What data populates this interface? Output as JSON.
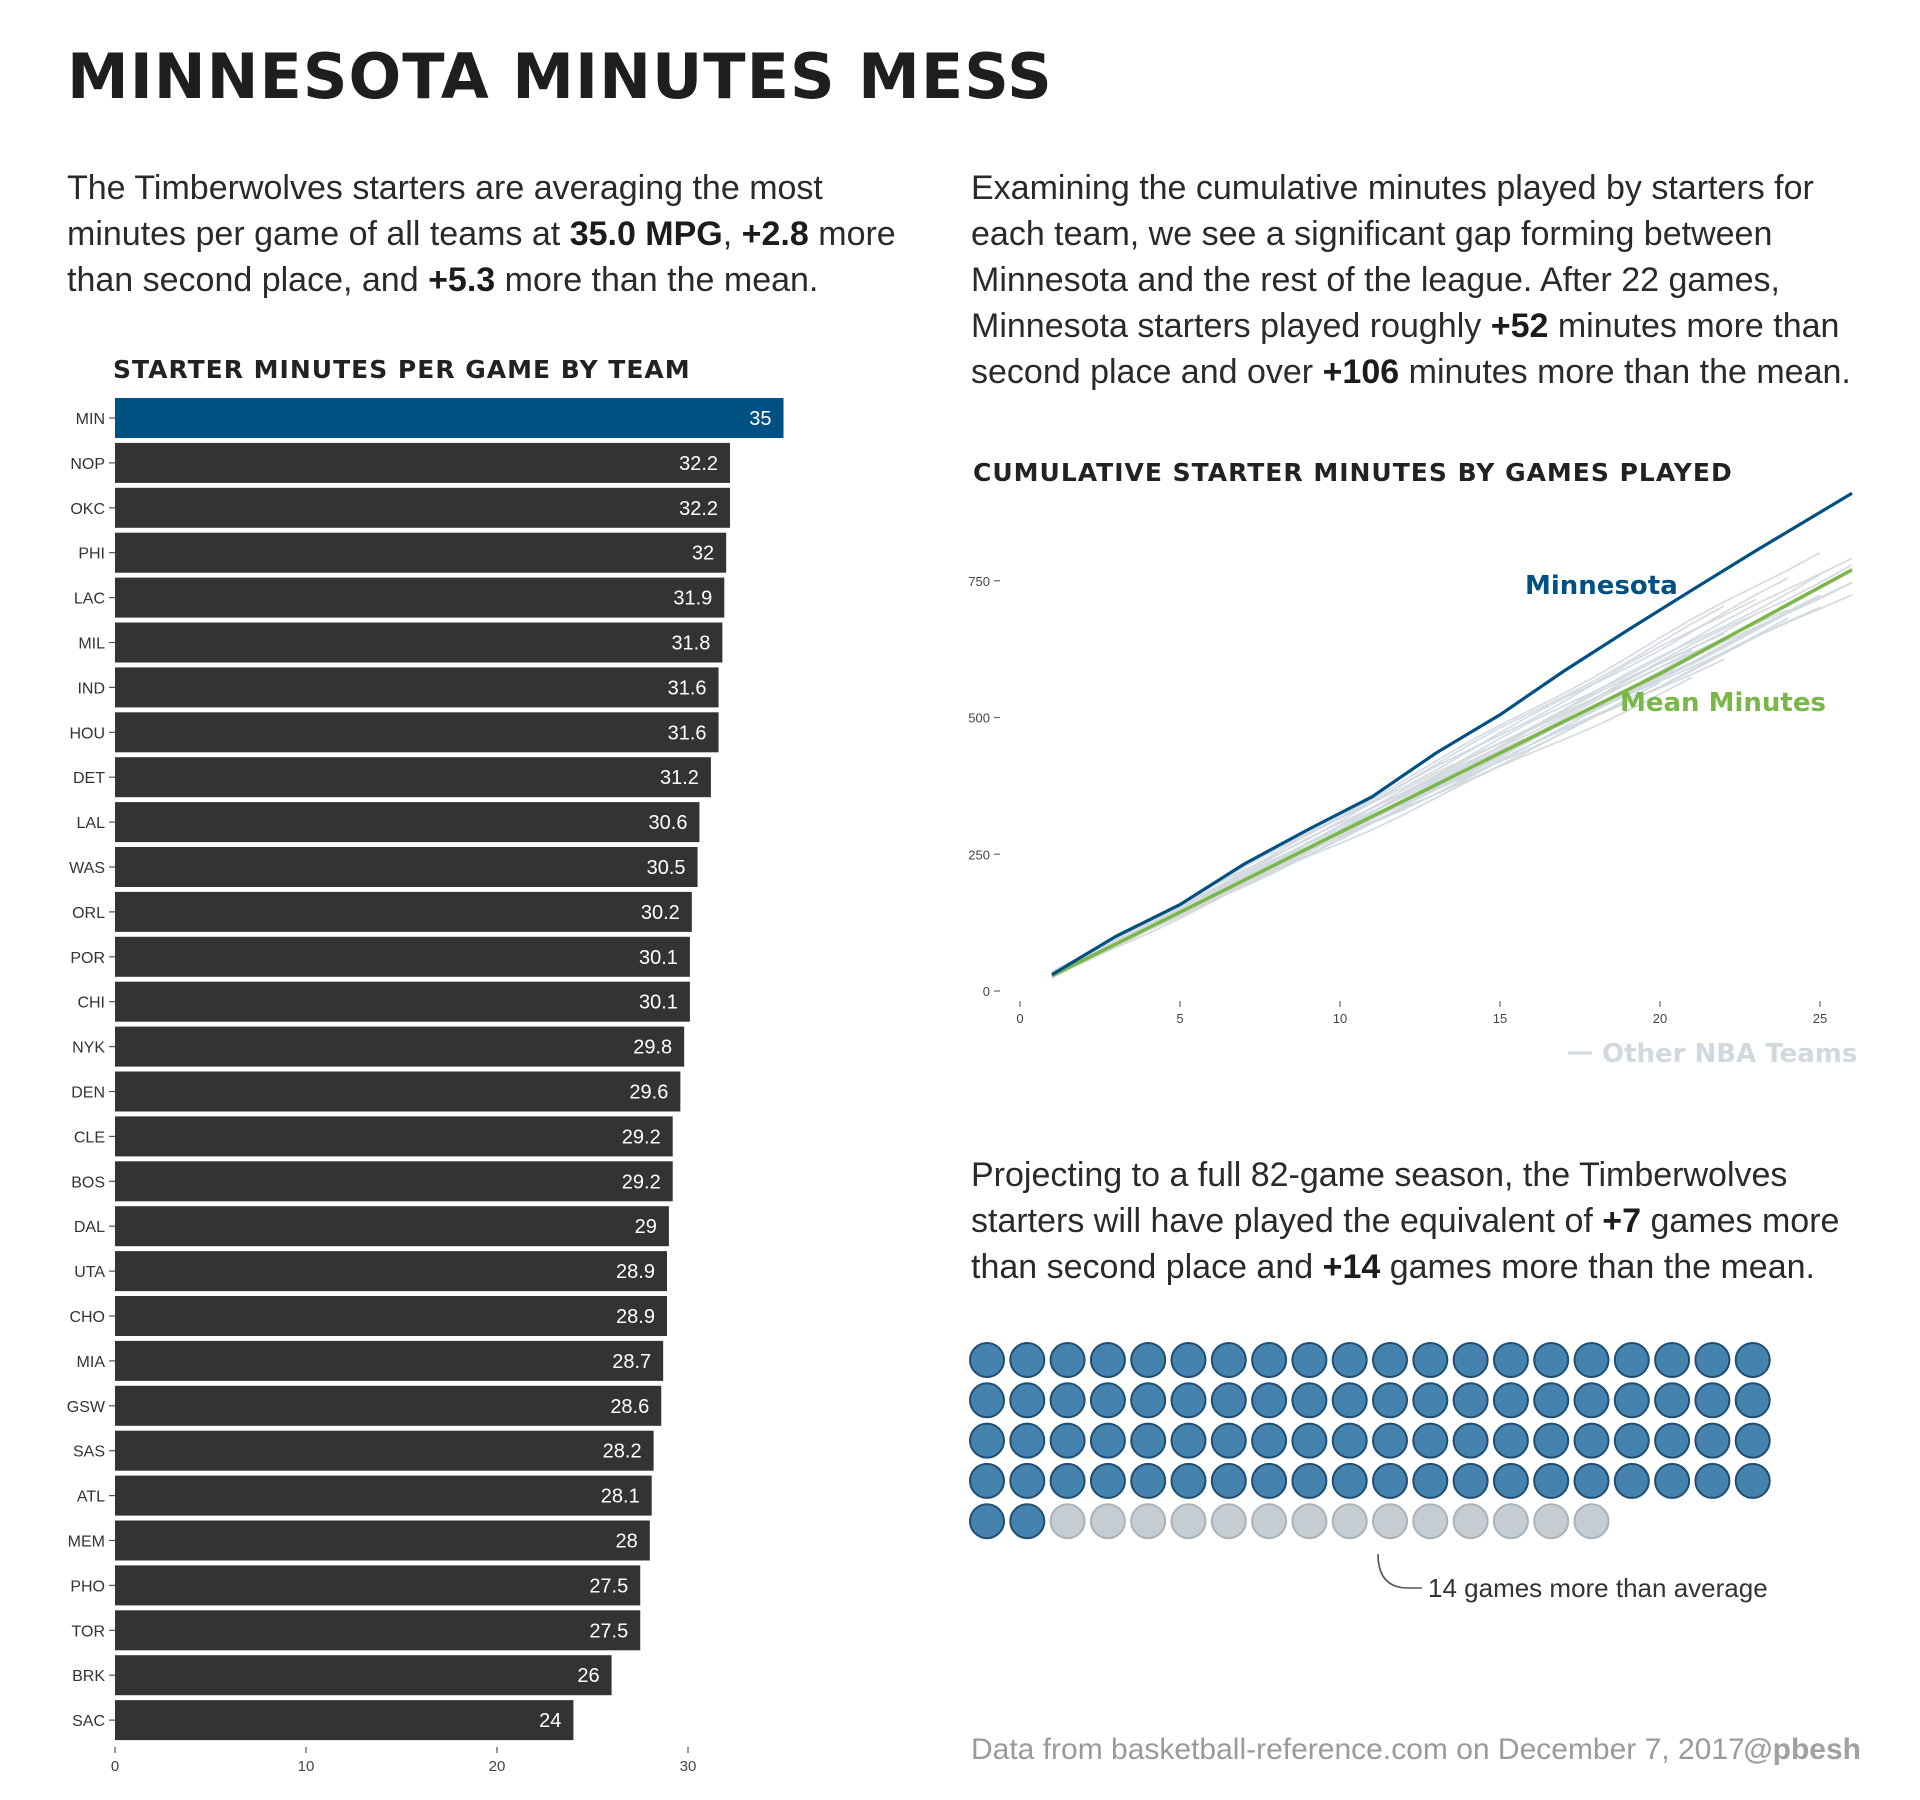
{
  "title": "MINNESOTA MINUTES MESS",
  "intro": {
    "t1": "The Timberwolves starters are averaging the most minutes per game of all teams at ",
    "b1": "35.0 MPG",
    "t2": ", ",
    "b2": "+2.8",
    "t3": " more than second place, and ",
    "b3": "+5.3",
    "t4": " more than the mean."
  },
  "cumulative_text": {
    "t1": "Examining the cumulative minutes played by starters for each team, we see a significant gap forming between Minnesota and the rest of the league. After 22 games, Minnesota starters played roughly ",
    "b1": "+52",
    "t2": " minutes more than second place and over ",
    "b2": "+106",
    "t3": " minutes more than the mean."
  },
  "projection_text": {
    "t1": "Projecting to a full 82-game season, the Timberwolves starters will have played the equivalent of ",
    "b1": "+7",
    "t2": " games more than second place and ",
    "b2": "+14",
    "t3": " games more than the mean."
  },
  "footer": {
    "source": "Data from basketball-reference.com on December 7, 2017",
    "handle": "@pbesh"
  },
  "colors": {
    "highlight": "#005083",
    "bar": "#333333",
    "mean": "#7ab648",
    "other": "#d1d8de",
    "waffle_filled": "#4582ad",
    "waffle_filled_stroke": "#1f4e72",
    "waffle_empty": "#c5cdd3",
    "waffle_empty_stroke": "#a9b2b9"
  },
  "chart_data": [
    {
      "type": "bar",
      "orientation": "horizontal",
      "title": "STARTER MINUTES PER GAME BY TEAM",
      "categories": [
        "MIN",
        "NOP",
        "OKC",
        "PHI",
        "LAC",
        "MIL",
        "IND",
        "HOU",
        "DET",
        "LAL",
        "WAS",
        "ORL",
        "POR",
        "CHI",
        "NYK",
        "DEN",
        "CLE",
        "BOS",
        "DAL",
        "UTA",
        "CHO",
        "MIA",
        "GSW",
        "SAS",
        "ATL",
        "MEM",
        "PHO",
        "TOR",
        "BRK",
        "SAC"
      ],
      "values": [
        35,
        32.2,
        32.2,
        32,
        31.9,
        31.8,
        31.6,
        31.6,
        31.2,
        30.6,
        30.5,
        30.2,
        30.1,
        30.1,
        29.8,
        29.6,
        29.2,
        29.2,
        29,
        28.9,
        28.9,
        28.7,
        28.6,
        28.2,
        28.1,
        28,
        27.5,
        27.5,
        26,
        24
      ],
      "value_labels": [
        "35",
        "32.2",
        "32.2",
        "32",
        "31.9",
        "31.8",
        "31.6",
        "31.6",
        "31.2",
        "30.6",
        "30.5",
        "30.2",
        "30.1",
        "30.1",
        "29.8",
        "29.6",
        "29.2",
        "29.2",
        "29",
        "28.9",
        "28.9",
        "28.7",
        "28.6",
        "28.2",
        "28.1",
        "28",
        "27.5",
        "27.5",
        "26",
        "24"
      ],
      "highlight": "MIN",
      "xlim": [
        0,
        35
      ],
      "xticks": [
        "0",
        "10",
        "20",
        "30"
      ]
    },
    {
      "type": "line",
      "title": "CUMULATIVE STARTER MINUTES BY GAMES PLAYED",
      "xlim": [
        0,
        26
      ],
      "ylim": [
        0,
        900
      ],
      "xticks": [
        "0",
        "5",
        "10",
        "15",
        "20",
        "25"
      ],
      "yticks": [
        "0",
        "250",
        "500",
        "750"
      ],
      "series": [
        {
          "name": "Minnesota",
          "x": [
            1,
            3,
            5,
            7,
            9,
            11,
            13,
            15,
            17,
            19,
            21,
            23,
            25,
            26
          ],
          "y": [
            30,
            100,
            158,
            232,
            295,
            355,
            435,
            505,
            585,
            660,
            733,
            805,
            875,
            910
          ]
        },
        {
          "name": "Mean Minutes",
          "x": [
            1,
            5,
            10,
            15,
            20,
            26
          ],
          "y": [
            28,
            144,
            290,
            435,
            580,
            770
          ]
        }
      ],
      "other_teams": {
        "name": "Other NBA Teams",
        "lines": [
          {
            "end_x": 26,
            "end_y": 795
          },
          {
            "end_x": 26,
            "end_y": 780
          },
          {
            "end_x": 26,
            "end_y": 765
          },
          {
            "end_x": 26,
            "end_y": 745
          },
          {
            "end_x": 26,
            "end_y": 728
          },
          {
            "end_x": 25,
            "end_y": 805
          },
          {
            "end_x": 25,
            "end_y": 760
          },
          {
            "end_x": 25,
            "end_y": 720
          },
          {
            "end_x": 24,
            "end_y": 752
          },
          {
            "end_x": 24,
            "end_y": 700
          },
          {
            "end_x": 23,
            "end_y": 720
          },
          {
            "end_x": 23,
            "end_y": 690
          },
          {
            "end_x": 23,
            "end_y": 660
          },
          {
            "end_x": 22,
            "end_y": 700
          },
          {
            "end_x": 22,
            "end_y": 655
          },
          {
            "end_x": 22,
            "end_y": 610
          },
          {
            "end_x": 21,
            "end_y": 625
          },
          {
            "end_x": 21,
            "end_y": 570
          },
          {
            "end_x": 20,
            "end_y": 560
          },
          {
            "end_x": 24,
            "end_y": 680
          },
          {
            "end_x": 25,
            "end_y": 700
          },
          {
            "end_x": 26,
            "end_y": 750
          }
        ]
      }
    },
    {
      "type": "waffle",
      "columns": 20,
      "filled": 82,
      "empty": 14,
      "annotation": "14 games more than average"
    }
  ]
}
